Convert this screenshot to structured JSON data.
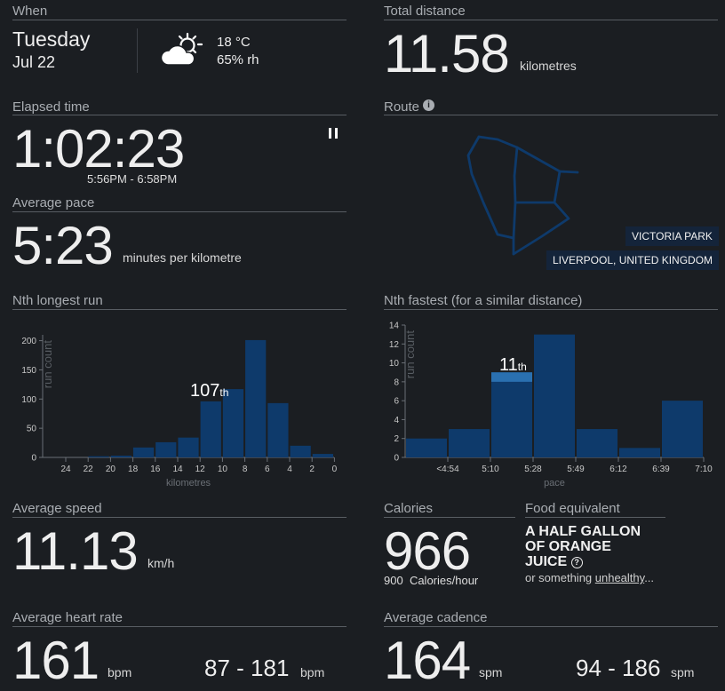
{
  "when": {
    "label": "When",
    "day": "Tuesday",
    "date": "Jul 22",
    "temp": "18 °C",
    "humidity": "65% rh"
  },
  "distance": {
    "label": "Total distance",
    "value": "11.58",
    "unit": "kilometres"
  },
  "elapsed": {
    "label": "Elapsed time",
    "value": "1:02:23",
    "range": "5:56PM - 6:58PM"
  },
  "route": {
    "label": "Route",
    "place1": "VICTORIA PARK",
    "place2": "LIVERPOOL, UNITED KINGDOM"
  },
  "pace": {
    "label": "Average pace",
    "value": "5:23",
    "unit": "minutes per kilometre"
  },
  "nth_longest": {
    "label": "Nth longest run",
    "rank_num": "107",
    "rank_suffix": "th"
  },
  "nth_fastest": {
    "label": "Nth fastest (for a similar distance)",
    "rank_num": "11",
    "rank_suffix": "th"
  },
  "speed": {
    "label": "Average speed",
    "value": "11.13",
    "unit": "km/h"
  },
  "calories": {
    "label": "Calories",
    "value": "966",
    "rate_value": "900",
    "rate_unit": "Calories/hour"
  },
  "food": {
    "label": "Food equivalent",
    "line1": "A HALF GALLON",
    "line2": "OF ORANGE",
    "line3": "JUICE",
    "sub_pre": "or something ",
    "sub_link": "unhealthy",
    "sub_post": "..."
  },
  "heart": {
    "label": "Average heart rate",
    "value": "161",
    "unit": "bpm",
    "range": "87 - 181",
    "range_unit": "bpm"
  },
  "cadence": {
    "label": "Average cadence",
    "value": "164",
    "unit": "spm",
    "range": "94 - 186",
    "range_unit": "spm"
  },
  "colors": {
    "bar": "#0e3a6b",
    "highlight": "#2a70b0",
    "route": "#0e3a6b"
  },
  "chart_data": [
    {
      "type": "bar",
      "ylabel": "run count",
      "xlabel": "kilometres",
      "ylim": [
        0,
        210
      ],
      "yticks": [
        "0",
        "50",
        "100",
        "150",
        "200"
      ],
      "xticks": [
        "24",
        "22",
        "20",
        "18",
        "16",
        "14",
        "12",
        "10",
        "8",
        "6",
        "4",
        "2",
        "0"
      ],
      "values": [
        0,
        0,
        2,
        3,
        17,
        26,
        34,
        96,
        117,
        201,
        93,
        20,
        6
      ],
      "highlight_index": 7
    },
    {
      "type": "bar",
      "ylabel": "run count",
      "xlabel": "pace",
      "ylim": [
        0,
        14
      ],
      "yticks": [
        "0",
        "2",
        "4",
        "6",
        "8",
        "10",
        "12",
        "14"
      ],
      "xticks": [
        "<4:54",
        "5:10",
        "5:28",
        "5:49",
        "6:12",
        "6:39",
        "7:10"
      ],
      "values": [
        2,
        3,
        9,
        13,
        3,
        1,
        6
      ],
      "highlight_index": 2,
      "highlight_value": 1
    }
  ]
}
